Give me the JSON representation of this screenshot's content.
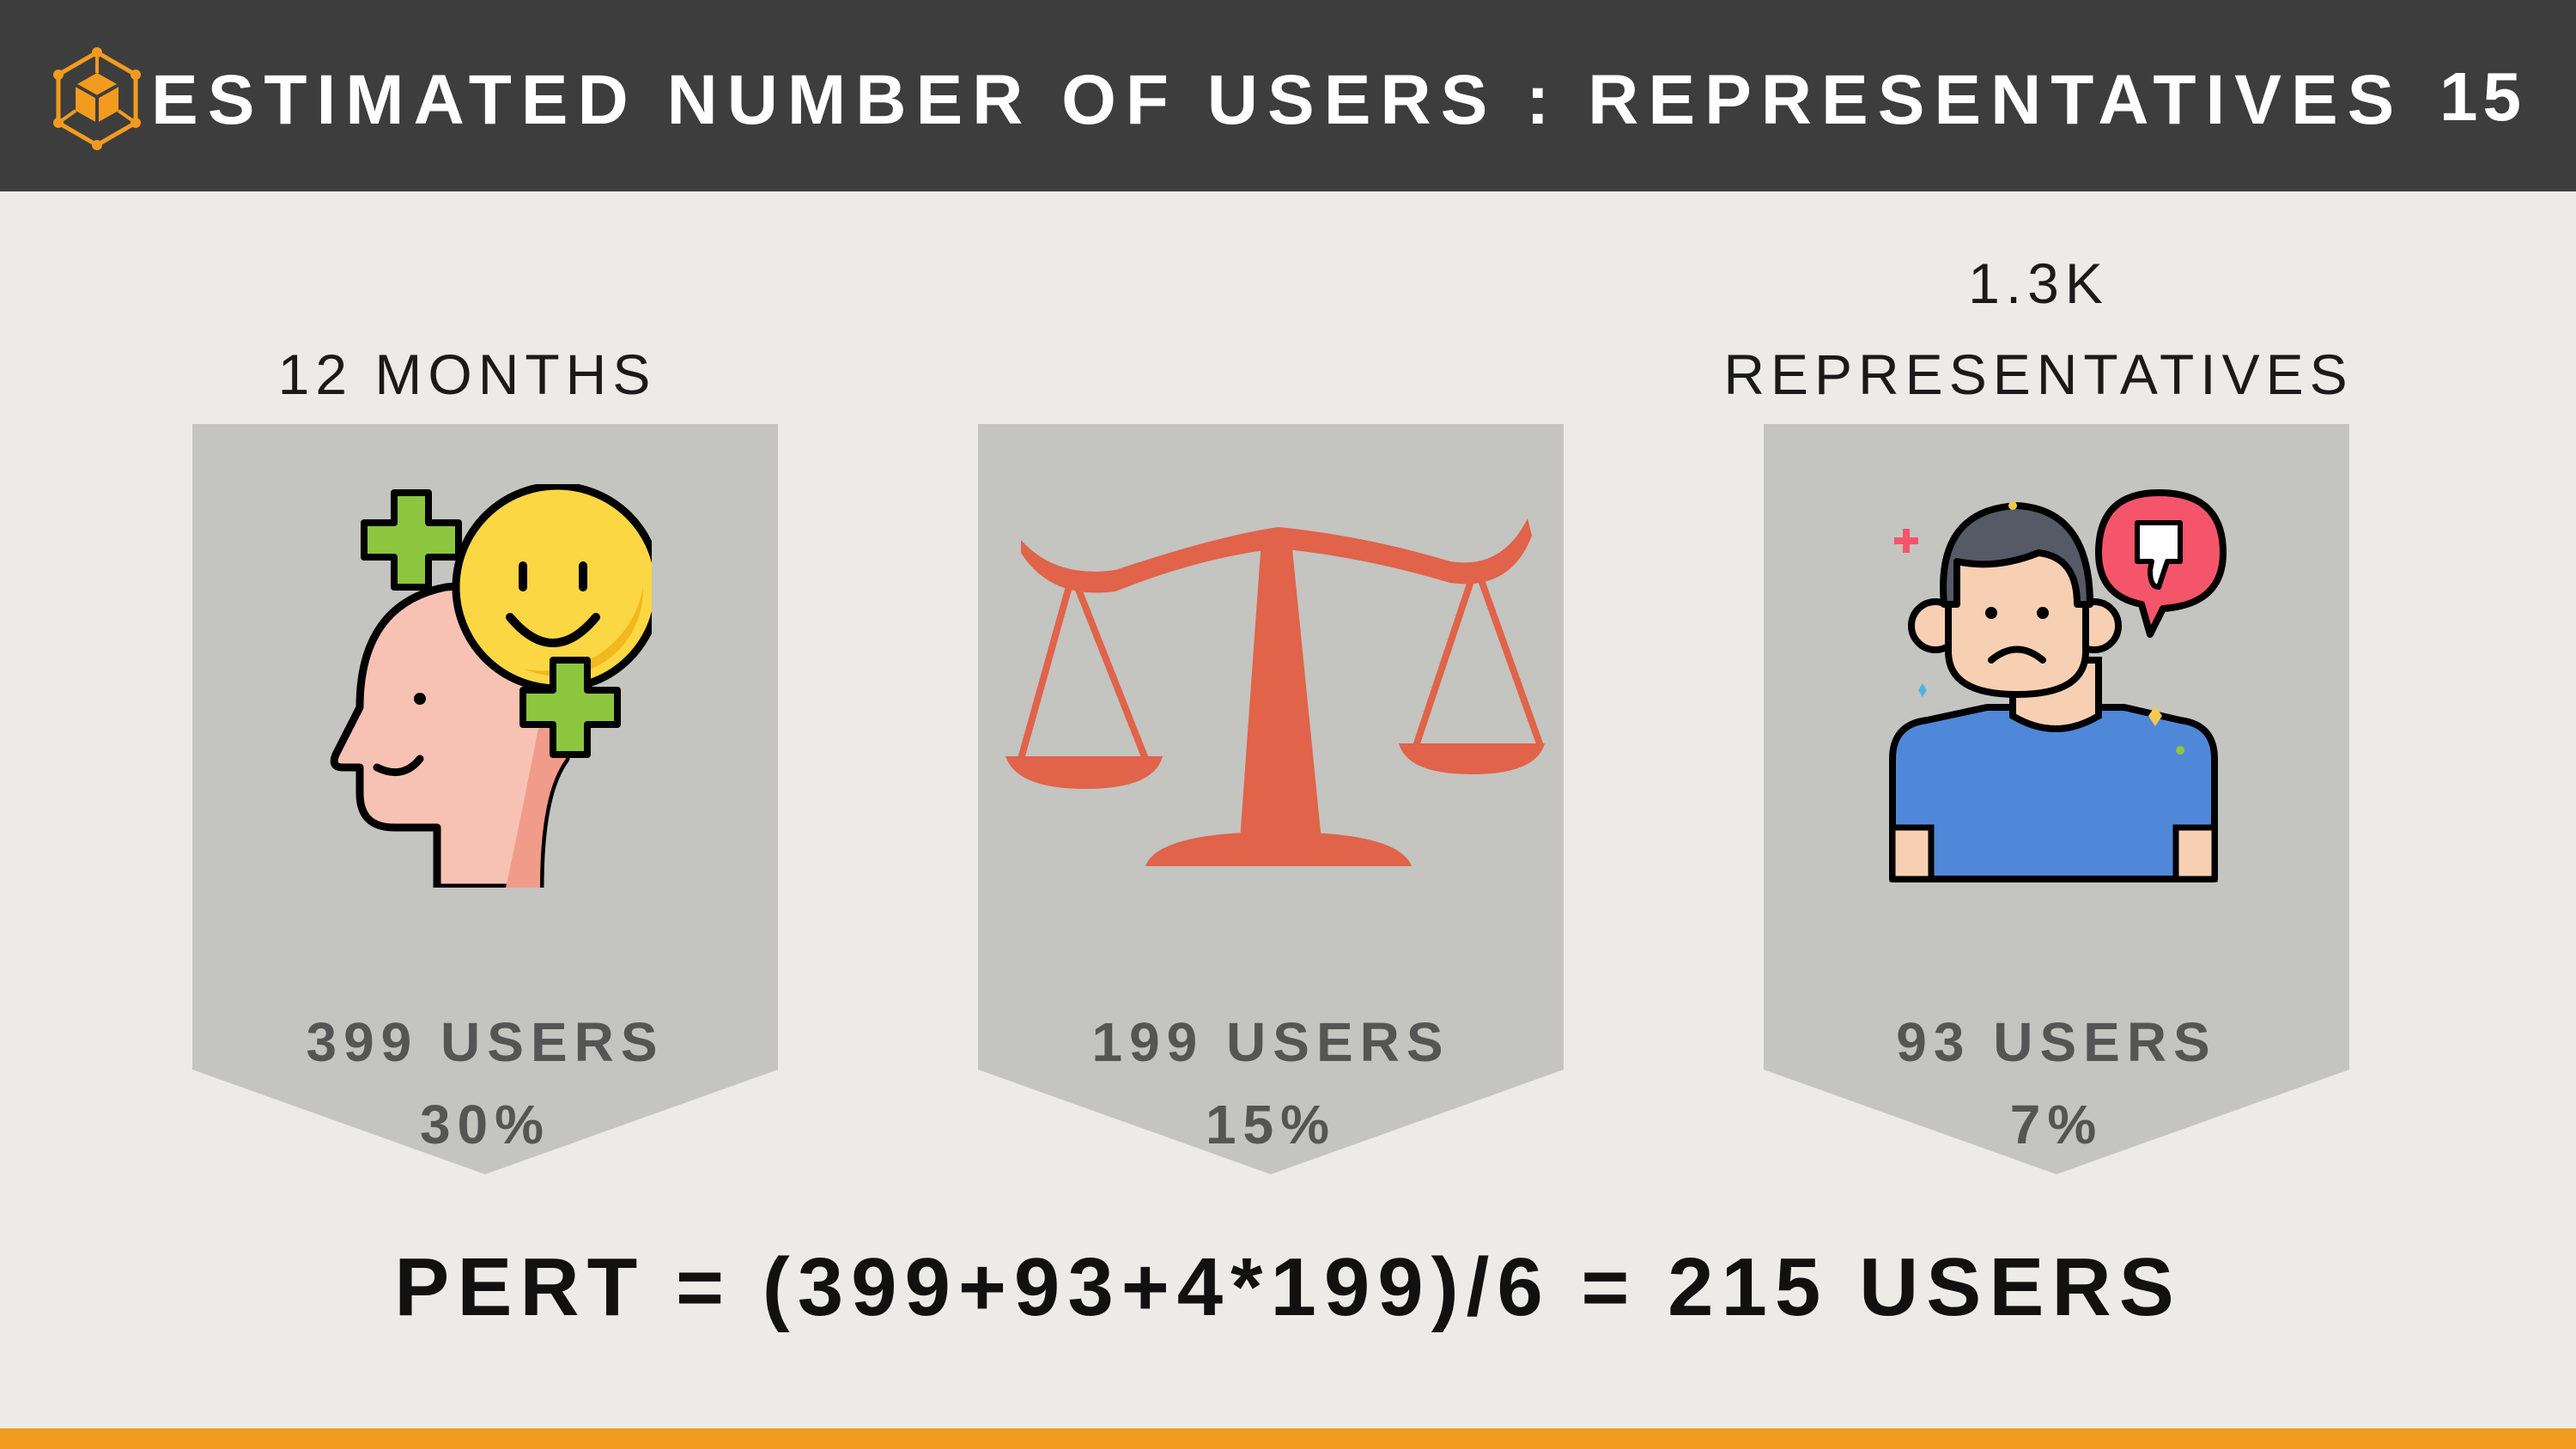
{
  "header": {
    "title": "ESTIMATED NUMBER OF USERS : REPRESENTATIVES",
    "page_number": "15",
    "logo_icon": "cube-network-icon"
  },
  "labels": {
    "left": "12 MONTHS",
    "right_line1": "1.3K",
    "right_line2": "REPRESENTATIVES"
  },
  "cards": [
    {
      "icon": "happy-head-icon",
      "users": "399 USERS",
      "percent": "30%"
    },
    {
      "icon": "balance-scale-icon",
      "users": "199 USERS",
      "percent": "15%"
    },
    {
      "icon": "sad-person-thumbs-down-icon",
      "users": "93 USERS",
      "percent": "7%"
    }
  ],
  "formula": "PERT = (399+93+4*199)/6 = 215 USERS",
  "colors": {
    "header_bg": "#3d3d3d",
    "page_bg": "#ecebe7",
    "card_bg": "#c4c4c0",
    "accent_orange": "#f29b1f",
    "scale_red": "#e0634a"
  }
}
